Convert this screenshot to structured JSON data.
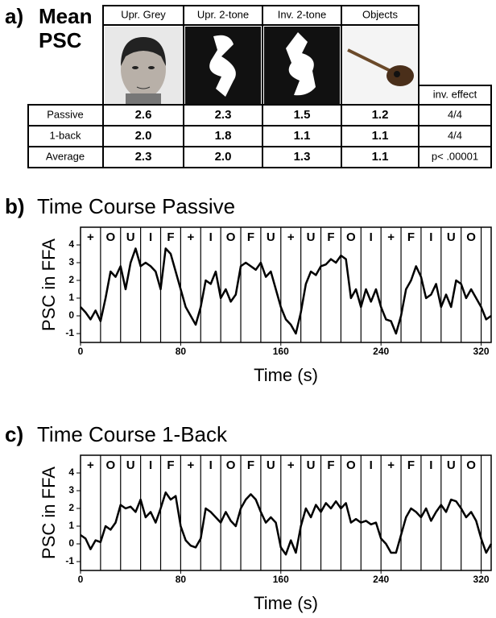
{
  "panel_a": {
    "panel_label": "a)",
    "title": "Mean PSC",
    "columns": [
      "Upr. Grey",
      "Upr. 2-tone",
      "Inv. 2-tone",
      "Objects",
      "inv. effect"
    ],
    "rows": [
      {
        "label": "Passive",
        "cells": [
          "2.6",
          "2.3",
          "1.5",
          "1.2",
          "4/4"
        ]
      },
      {
        "label": "1-back",
        "cells": [
          "2.0",
          "1.8",
          "1.1",
          "1.1",
          "4/4"
        ]
      },
      {
        "label": "Average",
        "cells": [
          "2.3",
          "2.0",
          "1.3",
          "1.1",
          "p< .00001"
        ]
      }
    ]
  },
  "chart_data": [
    {
      "type": "line",
      "panel_label": "b)",
      "title": "Time Course Passive",
      "xlabel": "Time (s)",
      "ylabel": "PSC in FFA",
      "color": "#000000",
      "blocks": [
        "+",
        "O",
        "U",
        "I",
        "F",
        "+",
        "I",
        "O",
        "F",
        "U",
        "+",
        "U",
        "F",
        "O",
        "I",
        "+",
        "F",
        "I",
        "U",
        "O"
      ],
      "block_edges": [
        16,
        32,
        48,
        64,
        80,
        96,
        112,
        128,
        144,
        160,
        176,
        192,
        208,
        224,
        240,
        256,
        272,
        288,
        304,
        320
      ],
      "xlim": [
        0,
        328
      ],
      "xticks": [
        0,
        80,
        160,
        240,
        320
      ],
      "ylim": [
        -1.5,
        5
      ],
      "yticks": [
        -1,
        0,
        1,
        2,
        3,
        4
      ],
      "x": [
        0,
        4,
        8,
        12,
        16,
        20,
        24,
        28,
        32,
        36,
        40,
        44,
        48,
        52,
        56,
        60,
        64,
        68,
        72,
        76,
        80,
        84,
        88,
        92,
        96,
        100,
        104,
        108,
        112,
        116,
        120,
        124,
        128,
        132,
        136,
        140,
        144,
        148,
        152,
        156,
        160,
        164,
        168,
        172,
        176,
        180,
        184,
        188,
        192,
        196,
        200,
        204,
        208,
        212,
        216,
        220,
        224,
        228,
        232,
        236,
        240,
        244,
        248,
        252,
        256,
        260,
        264,
        268,
        272,
        276,
        280,
        284,
        288,
        292,
        296,
        300,
        304,
        308,
        312,
        316,
        320,
        324,
        328
      ],
      "values": [
        0.5,
        0.2,
        -0.2,
        0.3,
        -0.3,
        1.0,
        2.5,
        2.2,
        2.8,
        1.5,
        3.0,
        3.8,
        2.8,
        3.0,
        2.8,
        2.5,
        1.5,
        3.8,
        3.5,
        2.5,
        1.5,
        0.5,
        0,
        -0.5,
        0.5,
        2.0,
        1.8,
        2.5,
        1.0,
        1.5,
        0.8,
        1.2,
        2.8,
        3.0,
        2.8,
        2.6,
        3.0,
        2.2,
        2.5,
        1.5,
        0.5,
        -0.2,
        -0.5,
        -1.0,
        0.2,
        1.8,
        2.5,
        2.3,
        2.8,
        2.9,
        3.2,
        3.0,
        3.4,
        3.2,
        1.0,
        1.5,
        0.5,
        1.5,
        0.8,
        1.5,
        0.5,
        -0.2,
        -0.3,
        -1.0,
        0,
        1.5,
        2.0,
        2.8,
        2.2,
        1.0,
        1.2,
        1.8,
        0.5,
        1.2,
        0.5,
        2.0,
        1.8,
        1.0,
        1.5,
        1.0,
        0.5,
        -0.2,
        0
      ]
    },
    {
      "type": "line",
      "panel_label": "c)",
      "title": "Time Course 1-Back",
      "xlabel": "Time (s)",
      "ylabel": "PSC in FFA",
      "color": "#000000",
      "blocks": [
        "+",
        "O",
        "U",
        "I",
        "F",
        "+",
        "I",
        "O",
        "F",
        "U",
        "+",
        "U",
        "F",
        "O",
        "I",
        "+",
        "F",
        "I",
        "U",
        "O"
      ],
      "block_edges": [
        16,
        32,
        48,
        64,
        80,
        96,
        112,
        128,
        144,
        160,
        176,
        192,
        208,
        224,
        240,
        256,
        272,
        288,
        304,
        320
      ],
      "xlim": [
        0,
        328
      ],
      "xticks": [
        0,
        80,
        160,
        240,
        320
      ],
      "ylim": [
        -1.5,
        5
      ],
      "yticks": [
        -1,
        0,
        1,
        2,
        3,
        4
      ],
      "x": [
        0,
        4,
        8,
        12,
        16,
        20,
        24,
        28,
        32,
        36,
        40,
        44,
        48,
        52,
        56,
        60,
        64,
        68,
        72,
        76,
        80,
        84,
        88,
        92,
        96,
        100,
        104,
        108,
        112,
        116,
        120,
        124,
        128,
        132,
        136,
        140,
        144,
        148,
        152,
        156,
        160,
        164,
        168,
        172,
        176,
        180,
        184,
        188,
        192,
        196,
        200,
        204,
        208,
        212,
        216,
        220,
        224,
        228,
        232,
        236,
        240,
        244,
        248,
        252,
        256,
        260,
        264,
        268,
        272,
        276,
        280,
        284,
        288,
        292,
        296,
        300,
        304,
        308,
        312,
        316,
        320,
        324,
        328
      ],
      "values": [
        0.5,
        0.3,
        -0.3,
        0.2,
        0.1,
        1.0,
        0.8,
        1.2,
        2.2,
        2.0,
        2.1,
        1.8,
        2.5,
        1.5,
        1.8,
        1.2,
        2.0,
        2.9,
        2.5,
        2.7,
        1.0,
        0.2,
        -0.1,
        -0.2,
        0.3,
        2.0,
        1.8,
        1.5,
        1.2,
        1.8,
        1.3,
        1.0,
        2.0,
        2.5,
        2.8,
        2.5,
        1.8,
        1.2,
        1.5,
        1.2,
        -0.2,
        -0.6,
        0.2,
        -0.5,
        1.0,
        2.0,
        1.5,
        2.2,
        1.8,
        2.3,
        2.0,
        2.4,
        2.0,
        2.3,
        1.2,
        1.4,
        1.2,
        1.3,
        1.1,
        1.2,
        0.3,
        0,
        -0.5,
        -0.5,
        0.5,
        1.5,
        2.0,
        1.8,
        1.5,
        2.0,
        1.3,
        1.8,
        2.2,
        1.8,
        2.5,
        2.4,
        2.0,
        1.5,
        1.8,
        1.3,
        0.3,
        -0.5,
        0
      ]
    }
  ]
}
